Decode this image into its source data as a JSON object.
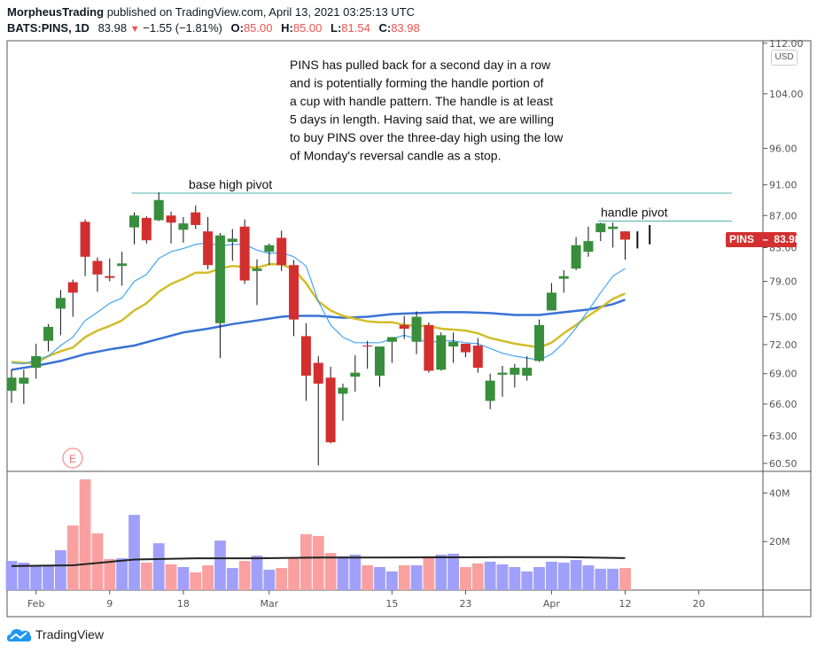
{
  "header": {
    "author": "MorpheusTrading",
    "published": "published on TradingView.com, April 13, 2021 03:25:13 UTC",
    "symbol": "BATS:PINS, 1D",
    "last": "83.98",
    "change": "−1.55 (−1.81%)",
    "o_label": "O:",
    "o": "85.00",
    "h_label": "H:",
    "h": "85.00",
    "l_label": "L:",
    "l": "81.54",
    "c_label": "C:",
    "c": "83.98"
  },
  "currency": "USD",
  "price_label": {
    "symbol": "PINS",
    "value": "83.98"
  },
  "earnings_marker": "E",
  "footer": {
    "logo_text": "TradingView"
  },
  "colors": {
    "up": "#388e3c",
    "down": "#d32f2f",
    "vol_up": "#a0a0fa",
    "vol_down": "#faa0a0",
    "ma_fast": "#42a5f5",
    "ma_mid": "#d2bd2a",
    "ma_slow": "#3a72d6",
    "pivot_line": "#4db6ac",
    "red_text": "#ef5350"
  },
  "chart_data": {
    "type": "candlestick",
    "title": "BATS:PINS, 1D",
    "yscale": "log",
    "price_ticks": [
      "112.00",
      "104.00",
      "96.00",
      "91.00",
      "87.00",
      "83.00",
      "79.00",
      "75.00",
      "72.00",
      "69.00",
      "66.00",
      "63.00",
      "60.50"
    ],
    "volume_ticks": [
      "40M",
      "20M"
    ],
    "x_ticks": [
      {
        "label": "Feb",
        "index": 2
      },
      {
        "label": "9",
        "index": 8
      },
      {
        "label": "18",
        "index": 14
      },
      {
        "label": "Mar",
        "index": 21
      },
      {
        "label": "15",
        "index": 31
      },
      {
        "label": "23",
        "index": 37
      },
      {
        "label": "Apr",
        "index": 44
      },
      {
        "label": "12",
        "index": 50
      },
      {
        "label": "20",
        "index": 56
      }
    ],
    "candles": [
      [
        67.3,
        69.4,
        66.1,
        68.6
      ],
      [
        68.0,
        69.4,
        66.0,
        68.6
      ],
      [
        69.6,
        72.1,
        68.5,
        70.8
      ],
      [
        72.4,
        74.2,
        71.3,
        73.9
      ],
      [
        75.9,
        78.0,
        73.0,
        77.1
      ],
      [
        78.9,
        79.2,
        75.0,
        77.7
      ],
      [
        86.2,
        86.5,
        79.6,
        81.9
      ],
      [
        81.4,
        81.8,
        77.8,
        79.8
      ],
      [
        79.6,
        81.7,
        79.0,
        79.4
      ],
      [
        80.8,
        82.5,
        78.5,
        81.1
      ],
      [
        85.5,
        87.4,
        83.4,
        87.0
      ],
      [
        86.7,
        86.9,
        83.5,
        83.9
      ],
      [
        86.4,
        90.0,
        86.3,
        89.0
      ],
      [
        87.0,
        87.5,
        83.5,
        86.1
      ],
      [
        85.2,
        86.8,
        83.6,
        86.0
      ],
      [
        87.4,
        88.3,
        85.3,
        85.8
      ],
      [
        85.0,
        86.8,
        80.4,
        80.9
      ],
      [
        74.3,
        84.8,
        70.6,
        84.5
      ],
      [
        83.7,
        85.3,
        81.4,
        84.1
      ],
      [
        85.6,
        86.5,
        78.7,
        79.1
      ],
      [
        80.2,
        81.6,
        76.3,
        80.5
      ],
      [
        82.5,
        83.5,
        80.9,
        83.3
      ],
      [
        84.2,
        85.1,
        80.2,
        80.9
      ],
      [
        80.9,
        81.5,
        72.9,
        74.7
      ],
      [
        72.9,
        74.3,
        66.3,
        68.8
      ],
      [
        70.1,
        70.8,
        60.3,
        68.0
      ],
      [
        68.6,
        69.7,
        62.3,
        62.4
      ],
      [
        67.0,
        68.0,
        64.4,
        67.6
      ],
      [
        68.7,
        70.9,
        67.2,
        69.1
      ],
      [
        71.9,
        72.4,
        69.5,
        71.8
      ],
      [
        68.8,
        71.8,
        67.7,
        71.8
      ],
      [
        72.3,
        72.8,
        70.1,
        72.8
      ],
      [
        74.1,
        75.1,
        72.6,
        73.7
      ],
      [
        72.3,
        75.6,
        71.0,
        75.0
      ],
      [
        74.1,
        74.4,
        69.1,
        69.3
      ],
      [
        69.4,
        73.3,
        69.3,
        73.0
      ],
      [
        71.8,
        73.3,
        70.1,
        72.3
      ],
      [
        72.1,
        72.1,
        70.7,
        71.2
      ],
      [
        71.9,
        72.7,
        69.1,
        69.6
      ],
      [
        66.3,
        69.0,
        65.5,
        68.3
      ],
      [
        68.9,
        69.8,
        66.7,
        69.1
      ],
      [
        68.9,
        70.0,
        67.6,
        69.6
      ],
      [
        68.8,
        70.8,
        68.3,
        69.6
      ],
      [
        70.3,
        74.7,
        70.2,
        74.1
      ],
      [
        75.7,
        78.8,
        75.7,
        77.7
      ],
      [
        79.3,
        80.3,
        77.7,
        79.6
      ],
      [
        80.5,
        84.3,
        80.3,
        83.3
      ],
      [
        82.5,
        85.6,
        81.9,
        83.8
      ],
      [
        84.9,
        86.1,
        83.8,
        86.0
      ],
      [
        85.3,
        86.1,
        83.0,
        85.6
      ],
      [
        85.0,
        85.0,
        81.54,
        83.98
      ]
    ],
    "candle_format": "open, high, low, close",
    "volume_millions": [
      12.0,
      11.3,
      9.9,
      9.9,
      16.4,
      26.6,
      45.6,
      23.4,
      12.8,
      13.1,
      31.0,
      11.3,
      19.3,
      10.6,
      9.5,
      7.3,
      10.2,
      20.4,
      9.1,
      12.0,
      14.2,
      8.4,
      9.1,
      13.5,
      23.0,
      22.3,
      15.3,
      13.9,
      14.6,
      10.2,
      9.5,
      7.7,
      10.2,
      10.2,
      13.9,
      14.6,
      15.0,
      9.5,
      11.0,
      11.7,
      10.6,
      9.5,
      7.7,
      9.5,
      11.7,
      11.3,
      12.4,
      10.2,
      8.8,
      8.8,
      9.1
    ],
    "volume_ma_millions": [
      [
        0,
        9.9
      ],
      [
        5,
        10.2
      ],
      [
        10,
        12.6
      ],
      [
        15,
        13.1
      ],
      [
        20,
        13.1
      ],
      [
        25,
        13.4
      ],
      [
        30,
        13.4
      ],
      [
        35,
        13.5
      ],
      [
        40,
        13.6
      ],
      [
        45,
        13.6
      ],
      [
        50,
        13.2
      ]
    ],
    "ma_fast": [
      70.1,
      70.0,
      70.4,
      70.8,
      71.9,
      72.8,
      74.6,
      75.5,
      76.5,
      77.1,
      79.0,
      79.8,
      81.7,
      82.5,
      82.9,
      83.4,
      83.6,
      83.2,
      83.4,
      83.4,
      82.7,
      82.3,
      82.4,
      81.9,
      80.8,
      76.7,
      74.1,
      72.8,
      72.2,
      72.2,
      72.2,
      72.6,
      73.0,
      72.6,
      72.2,
      72.4,
      72.4,
      72.2,
      72.1,
      71.6,
      71.1,
      70.8,
      70.6,
      70.4,
      71.0,
      72.2,
      73.8,
      75.7,
      77.7,
      79.6,
      80.5
    ],
    "ma_mid": [
      70.2,
      70.1,
      70.1,
      70.8,
      71.3,
      71.7,
      72.8,
      73.5,
      74.0,
      74.6,
      75.7,
      76.5,
      77.8,
      78.7,
      79.3,
      80.0,
      80.0,
      80.5,
      80.8,
      80.7,
      80.6,
      81.0,
      81.0,
      80.4,
      78.8,
      76.7,
      75.7,
      75.1,
      74.8,
      74.5,
      74.4,
      74.4,
      74.1,
      74.0,
      74.0,
      73.7,
      73.6,
      73.5,
      73.2,
      72.7,
      72.4,
      72.1,
      71.9,
      71.7,
      72.2,
      73.2,
      74.1,
      75.1,
      76.0,
      77.0,
      77.6
    ],
    "ma_slow": [
      [
        0,
        69.4
      ],
      [
        2,
        69.8
      ],
      [
        4,
        70.3
      ],
      [
        6,
        71.0
      ],
      [
        8,
        71.5
      ],
      [
        10,
        71.9
      ],
      [
        12,
        72.6
      ],
      [
        14,
        73.3
      ],
      [
        16,
        73.7
      ],
      [
        18,
        74.2
      ],
      [
        20,
        74.6
      ],
      [
        22,
        75.0
      ],
      [
        23,
        75.1
      ],
      [
        25,
        75.1
      ],
      [
        27,
        74.9
      ],
      [
        29,
        75.0
      ],
      [
        31,
        75.3
      ],
      [
        33,
        75.4
      ],
      [
        35,
        75.5
      ],
      [
        37,
        75.5
      ],
      [
        39,
        75.4
      ],
      [
        41,
        75.2
      ],
      [
        43,
        75.2
      ],
      [
        45,
        75.5
      ],
      [
        47,
        75.8
      ],
      [
        49,
        76.4
      ],
      [
        50,
        76.9
      ]
    ],
    "pivot_lines": [
      {
        "label": "base high pivot",
        "price": 89.9,
        "from_index": 10,
        "to_index": 59
      },
      {
        "label": "handle pivot",
        "price": 86.3,
        "from_index": 48,
        "to_index": 59
      }
    ],
    "marks": [
      {
        "index": 51,
        "from": 82.9,
        "to": 85.0
      },
      {
        "index": 52,
        "from": 83.4,
        "to": 85.8
      }
    ],
    "annotation": [
      "PINS has pulled back for a second day in a row",
      "and is potentially forming the handle portion of",
      "a cup with handle pattern.  The handle is at least",
      "5 days in length.  Having said that, we are willing",
      "to buy PINS over the three-day high using the low",
      "of Monday's reversal candle as a stop."
    ]
  }
}
